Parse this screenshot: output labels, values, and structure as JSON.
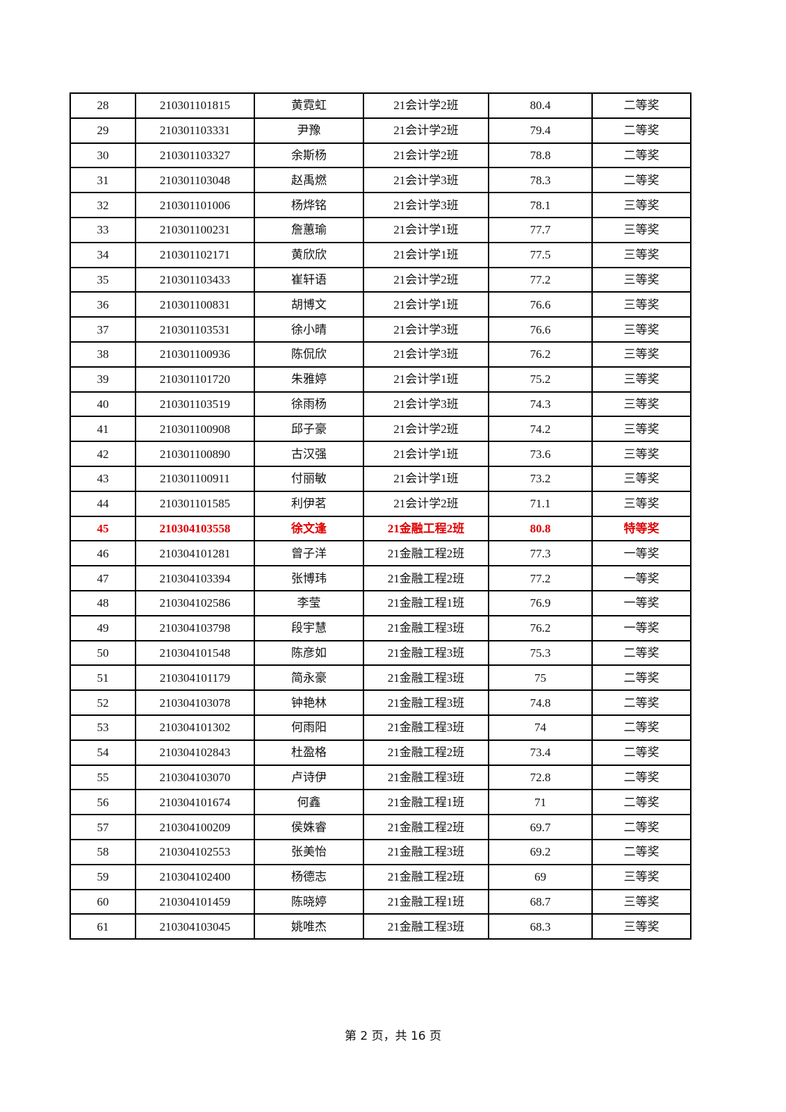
{
  "highlight_color": "#e00000",
  "rows": [
    [
      "28",
      "210301101815",
      "黄霓虹",
      "21会计学2班",
      "80.4",
      "二等奖"
    ],
    [
      "29",
      "210301103331",
      "尹豫",
      "21会计学2班",
      "79.4",
      "二等奖"
    ],
    [
      "30",
      "210301103327",
      "余斯杨",
      "21会计学2班",
      "78.8",
      "二等奖"
    ],
    [
      "31",
      "210301103048",
      "赵禹燃",
      "21会计学3班",
      "78.3",
      "二等奖"
    ],
    [
      "32",
      "210301101006",
      "杨烨铭",
      "21会计学3班",
      "78.1",
      "三等奖"
    ],
    [
      "33",
      "210301100231",
      "詹蕙瑜",
      "21会计学1班",
      "77.7",
      "三等奖"
    ],
    [
      "34",
      "210301102171",
      "黄欣欣",
      "21会计学1班",
      "77.5",
      "三等奖"
    ],
    [
      "35",
      "210301103433",
      "崔轩语",
      "21会计学2班",
      "77.2",
      "三等奖"
    ],
    [
      "36",
      "210301100831",
      "胡博文",
      "21会计学1班",
      "76.6",
      "三等奖"
    ],
    [
      "37",
      "210301103531",
      "徐小晴",
      "21会计学3班",
      "76.6",
      "三等奖"
    ],
    [
      "38",
      "210301100936",
      "陈侃欣",
      "21会计学3班",
      "76.2",
      "三等奖"
    ],
    [
      "39",
      "210301101720",
      "朱雅婷",
      "21会计学1班",
      "75.2",
      "三等奖"
    ],
    [
      "40",
      "210301103519",
      "徐雨杨",
      "21会计学3班",
      "74.3",
      "三等奖"
    ],
    [
      "41",
      "210301100908",
      "邱子豪",
      "21会计学2班",
      "74.2",
      "三等奖"
    ],
    [
      "42",
      "210301100890",
      "古汉强",
      "21会计学1班",
      "73.6",
      "三等奖"
    ],
    [
      "43",
      "210301100911",
      "付丽敏",
      "21会计学1班",
      "73.2",
      "三等奖"
    ],
    [
      "44",
      "210301101585",
      "利伊茗",
      "21会计学2班",
      "71.1",
      "三等奖"
    ],
    [
      "45",
      "210304103558",
      "徐文逢",
      "21金融工程2班",
      "80.8",
      "特等奖"
    ],
    [
      "46",
      "210304101281",
      "曾子洋",
      "21金融工程2班",
      "77.3",
      "一等奖"
    ],
    [
      "47",
      "210304103394",
      "张博玮",
      "21金融工程2班",
      "77.2",
      "一等奖"
    ],
    [
      "48",
      "210304102586",
      "李莹",
      "21金融工程1班",
      "76.9",
      "一等奖"
    ],
    [
      "49",
      "210304103798",
      "段宇慧",
      "21金融工程3班",
      "76.2",
      "一等奖"
    ],
    [
      "50",
      "210304101548",
      "陈彦如",
      "21金融工程3班",
      "75.3",
      "二等奖"
    ],
    [
      "51",
      "210304101179",
      "简永豪",
      "21金融工程3班",
      "75",
      "二等奖"
    ],
    [
      "52",
      "210304103078",
      "钟艳林",
      "21金融工程3班",
      "74.8",
      "二等奖"
    ],
    [
      "53",
      "210304101302",
      "何雨阳",
      "21金融工程3班",
      "74",
      "二等奖"
    ],
    [
      "54",
      "210304102843",
      "杜盈格",
      "21金融工程2班",
      "73.4",
      "二等奖"
    ],
    [
      "55",
      "210304103070",
      "卢诗伊",
      "21金融工程3班",
      "72.8",
      "二等奖"
    ],
    [
      "56",
      "210304101674",
      "何鑫",
      "21金融工程1班",
      "71",
      "二等奖"
    ],
    [
      "57",
      "210304100209",
      "侯姝睿",
      "21金融工程2班",
      "69.7",
      "二等奖"
    ],
    [
      "58",
      "210304102553",
      "张美怡",
      "21金融工程3班",
      "69.2",
      "二等奖"
    ],
    [
      "59",
      "210304102400",
      "杨德志",
      "21金融工程2班",
      "69",
      "三等奖"
    ],
    [
      "60",
      "210304101459",
      "陈晓婷",
      "21金融工程1班",
      "68.7",
      "三等奖"
    ],
    [
      "61",
      "210304103045",
      "姚唯杰",
      "21金融工程3班",
      "68.3",
      "三等奖"
    ]
  ],
  "highlighted_rows": [
    "45"
  ],
  "footer": {
    "text": "第 2 页，共 16 页"
  }
}
